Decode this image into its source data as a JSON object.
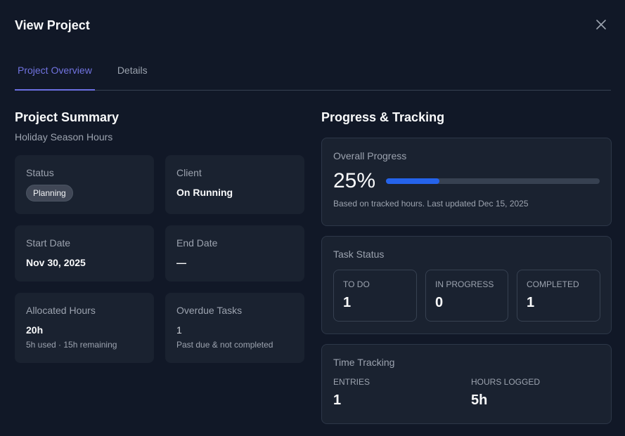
{
  "modal": {
    "title": "View Project",
    "close_icon": "close-icon"
  },
  "tabs": [
    {
      "label": "Project Overview",
      "active": true
    },
    {
      "label": "Details",
      "active": false
    }
  ],
  "summary": {
    "title": "Project Summary",
    "project_name": "Holiday Season Hours",
    "status": {
      "label": "Status",
      "value": "Planning"
    },
    "client": {
      "label": "Client",
      "value": "On Running"
    },
    "start_date": {
      "label": "Start Date",
      "value": "Nov 30, 2025"
    },
    "end_date": {
      "label": "End Date",
      "value": "—"
    },
    "allocated_hours": {
      "label": "Allocated Hours",
      "value": "20h",
      "note": "5h used · 15h remaining"
    },
    "overdue_tasks": {
      "label": "Overdue Tasks",
      "value": "1",
      "note": "Past due & not completed"
    }
  },
  "progress": {
    "title": "Progress & Tracking",
    "overall": {
      "label": "Overall Progress",
      "percent_text": "25%",
      "percent": 25,
      "note": "Based on tracked hours. Last updated Dec 15, 2025",
      "bar_color": "#2563eb"
    },
    "task_status": {
      "label": "Task Status",
      "items": [
        {
          "label": "TO DO",
          "value": "1"
        },
        {
          "label": "IN PROGRESS",
          "value": "0"
        },
        {
          "label": "COMPLETED",
          "value": "1"
        }
      ]
    },
    "time_tracking": {
      "label": "Time Tracking",
      "entries": {
        "label": "ENTRIES",
        "value": "1"
      },
      "hours_logged": {
        "label": "HOURS LOGGED",
        "value": "5h"
      }
    }
  },
  "colors": {
    "background": "#111827",
    "card": "#1a2230",
    "accent": "#6b6fe3",
    "progress": "#2563eb"
  }
}
